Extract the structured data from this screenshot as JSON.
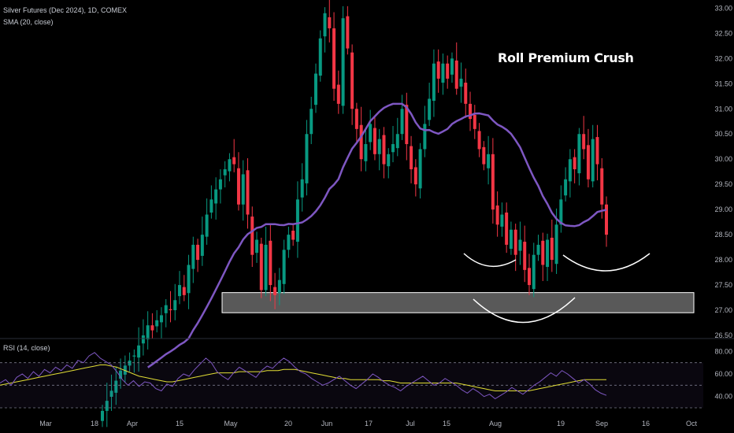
{
  "legend": {
    "symbol": "Silver Futures (Dec 2024), 1D, COMEX",
    "overlay": "SMA (20, close)",
    "oscillator": "RSI (14, close)"
  },
  "annotation": "Roll Premium Crush",
  "colors": {
    "background": "#000000",
    "up": "#089981",
    "down": "#f23645",
    "sma": "#7e57c2",
    "rsi": "#7e57c2",
    "rsi_ma": "#e2de35",
    "zone": "#ffffff",
    "arc": "#ffffff"
  },
  "chart_data": [
    {
      "type": "candlestick",
      "title": "Silver Futures (Dec 2024), 1D, COMEX",
      "ylim": [
        26.5,
        33.1
      ],
      "y_ticks": [
        "26.50",
        "27.00",
        "27.50",
        "28.00",
        "28.50",
        "29.00",
        "29.50",
        "30.00",
        "30.50",
        "31.00",
        "31.50",
        "32.00",
        "32.50",
        "33.00"
      ],
      "x_ticks": [
        "Mar",
        "18",
        "Apr",
        "15",
        "May",
        "20",
        "Jun",
        "17",
        "Jul",
        "15",
        "Aug",
        "19",
        "Sep",
        "16",
        "Oct"
      ],
      "grid": false,
      "closes": [
        25.0,
        25.2,
        25.4,
        25.6,
        25.8,
        25.9,
        26.0,
        26.1,
        26.3,
        26.5,
        26.7,
        26.6,
        26.8,
        26.9,
        27.1,
        27.0,
        27.2,
        27.5,
        27.3,
        27.9,
        28.3,
        28.0,
        28.5,
        28.9,
        29.2,
        29.4,
        29.6,
        29.8,
        30.0,
        29.9,
        29.1,
        29.7,
        28.9,
        28.1,
        28.4,
        27.4,
        28.3,
        27.5,
        27.3,
        27.6,
        28.2,
        28.5,
        28.4,
        29.2,
        29.6,
        30.5,
        31.0,
        31.7,
        32.4,
        32.9,
        32.6,
        31.4,
        31.1,
        32.8,
        32.2,
        31.0,
        30.6,
        30.0,
        30.3,
        30.7,
        30.1,
        30.4,
        29.9,
        30.1,
        30.3,
        30.5,
        31.0,
        30.3,
        29.8,
        29.5,
        30.2,
        30.7,
        31.2,
        31.9,
        31.6,
        31.9,
        31.6,
        32.0,
        31.4,
        31.6,
        31.1,
        30.8,
        30.6,
        30.2,
        29.9,
        30.1,
        29.0,
        28.7,
        28.9,
        28.3,
        28.6,
        28.1,
        28.4,
        27.8,
        27.5,
        28.1,
        28.3,
        27.9,
        28.4,
        28.0,
        28.7,
        29.2,
        29.6,
        30.0,
        29.8,
        30.5,
        30.2,
        29.6,
        30.4,
        29.9,
        29.1,
        28.5
      ],
      "sma_label": "SMA 20",
      "zone": {
        "y0": 26.95,
        "y1": 27.35,
        "note": "support zone (drawn)"
      }
    },
    {
      "type": "line",
      "title": "RSI (14, close)",
      "ylim": [
        30,
        90
      ],
      "y_ticks": [
        "80.00",
        "60.00",
        "40.00"
      ],
      "levels": [
        70,
        50,
        30
      ],
      "series": [
        {
          "name": "RSI",
          "values": [
            52,
            55,
            50,
            57,
            60,
            56,
            62,
            58,
            64,
            61,
            66,
            63,
            68,
            65,
            72,
            70,
            76,
            79,
            74,
            71,
            68,
            62,
            55,
            50,
            54,
            49,
            53,
            52,
            47,
            45,
            51,
            49,
            56,
            60,
            58,
            64,
            69,
            74,
            70,
            62,
            58,
            55,
            61,
            66,
            63,
            60,
            57,
            63,
            67,
            65,
            70,
            74,
            71,
            66,
            62,
            60,
            56,
            53,
            50,
            52,
            55,
            58,
            54,
            50,
            47,
            51,
            55,
            60,
            57,
            53,
            50,
            48,
            45,
            49,
            52,
            55,
            58,
            54,
            50,
            52,
            56,
            53,
            50,
            46,
            43,
            47,
            44,
            40,
            42,
            38,
            41,
            44,
            48,
            45,
            42,
            46,
            50,
            53,
            57,
            61,
            58,
            63,
            60,
            56,
            52,
            55,
            51,
            46,
            43,
            41
          ]
        },
        {
          "name": "RSI MA",
          "values": [
            50,
            51,
            52,
            53,
            54,
            55,
            56,
            57,
            58,
            59,
            60,
            61,
            62,
            63,
            64,
            65,
            66,
            67,
            68,
            68,
            67,
            66,
            64,
            62,
            60,
            58,
            57,
            56,
            55,
            54,
            53,
            53,
            54,
            55,
            56,
            57,
            58,
            59,
            60,
            61,
            61,
            61,
            61,
            62,
            62,
            62,
            62,
            62,
            63,
            63,
            63,
            64,
            64,
            64,
            63,
            62,
            61,
            60,
            59,
            58,
            57,
            56,
            56,
            55,
            55,
            55,
            55,
            55,
            55,
            54,
            54,
            53,
            52,
            52,
            52,
            52,
            52,
            52,
            52,
            52,
            52,
            52,
            52,
            51,
            50,
            49,
            48,
            47,
            46,
            45,
            45,
            45,
            45,
            45,
            45,
            45,
            46,
            47,
            48,
            49,
            50,
            51,
            52,
            53,
            54,
            55,
            55,
            55,
            55,
            55
          ]
        }
      ]
    }
  ]
}
